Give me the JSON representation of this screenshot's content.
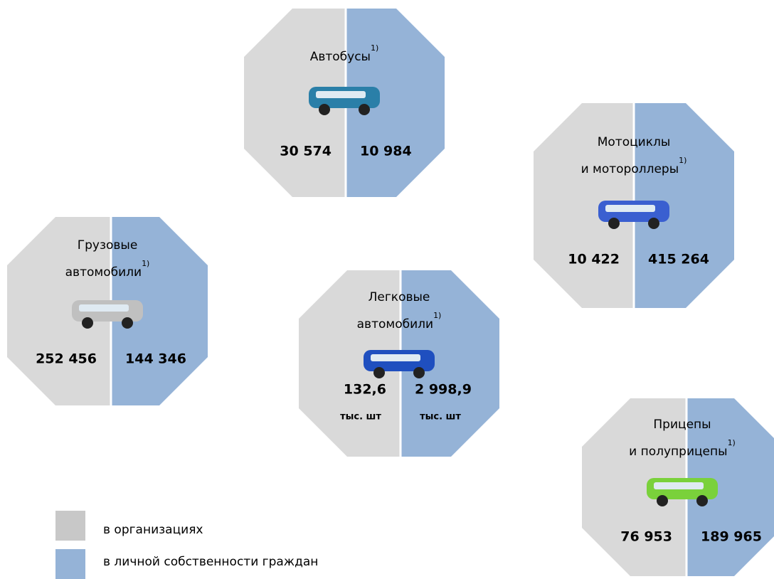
{
  "items": [
    {
      "title": [
        "Автобусы"
      ],
      "note": "1)",
      "left": "30 574",
      "right": "10 984"
    },
    {
      "title": [
        "Мотоциклы",
        "и мотороллеры"
      ],
      "note": "1)",
      "left": "10 422",
      "right": "415 264"
    },
    {
      "title": [
        "Грузовые",
        "автомобили"
      ],
      "note": "1)",
      "left": "252 456",
      "right": "144 346"
    },
    {
      "title": [
        "Легковые",
        "автомобили"
      ],
      "note": "1)",
      "left": "132,6",
      "right": "2 998,9",
      "left_unit": "тыс. шт",
      "right_unit": "тыс. шт"
    },
    {
      "title": [
        "Прицепы",
        "и полуприцепы"
      ],
      "note": "1)",
      "left": "76 953",
      "right": "189 965"
    }
  ],
  "legend": [
    "в организациях",
    "в личной собственности граждан"
  ]
}
